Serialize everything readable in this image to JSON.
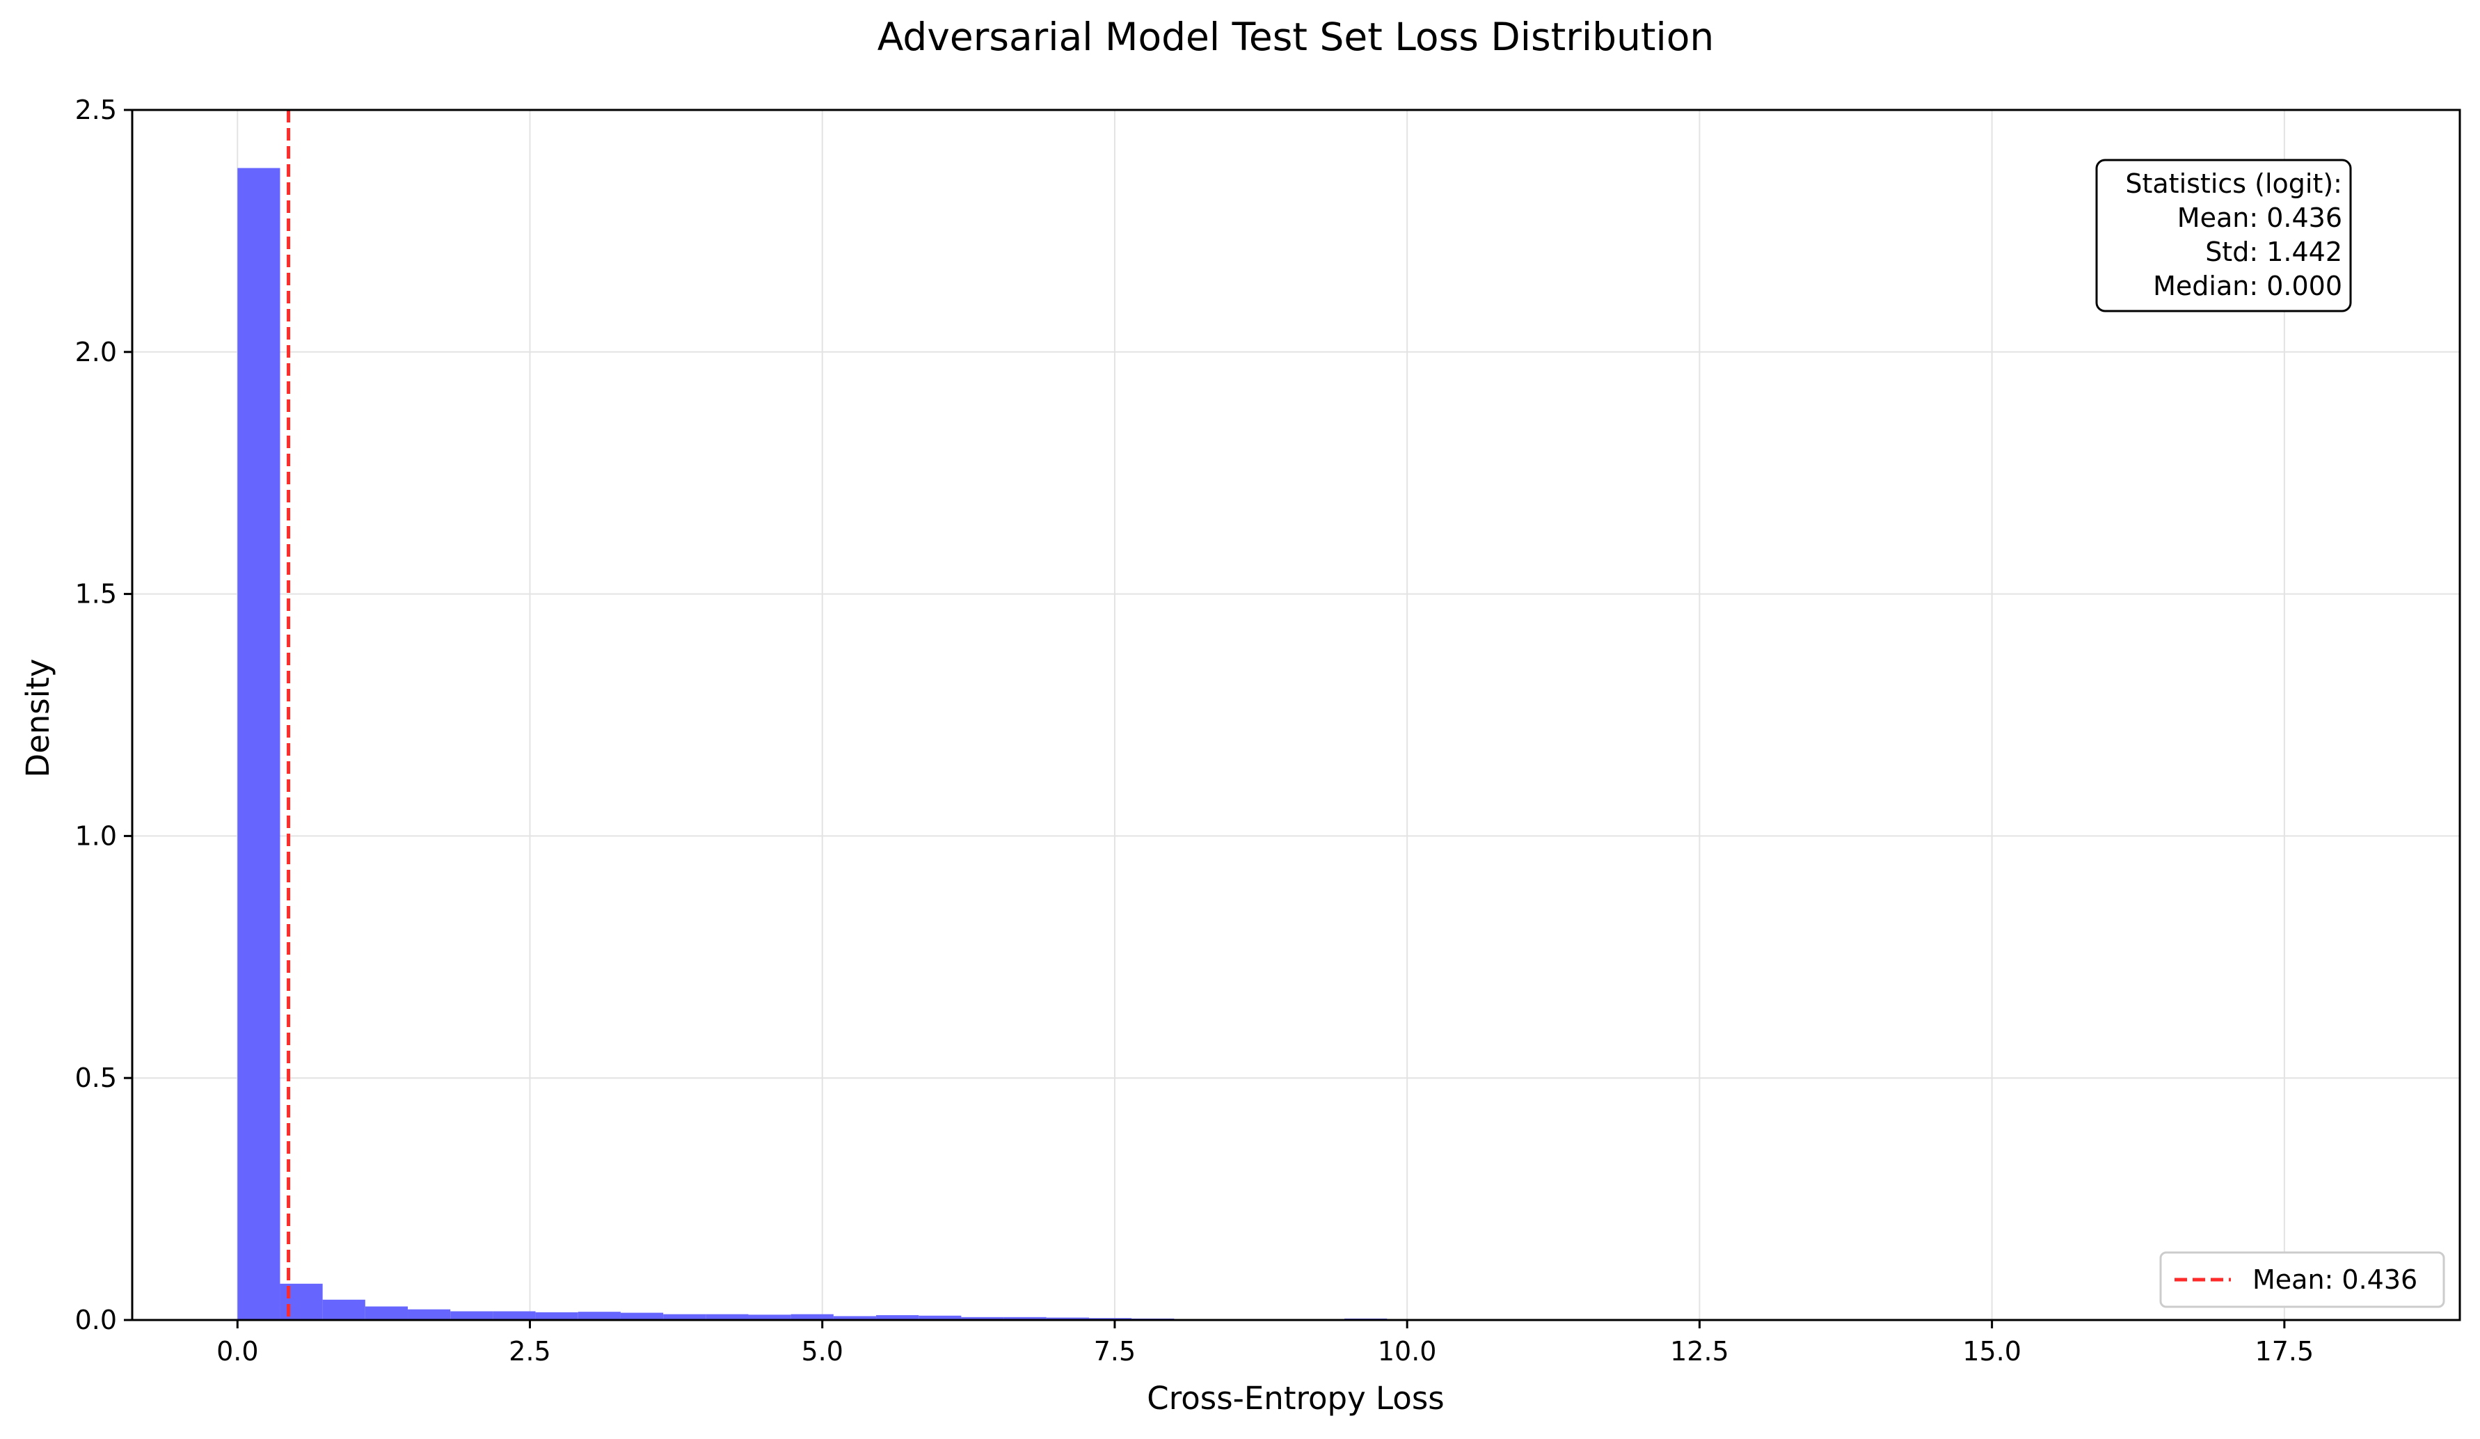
{
  "chart_data": {
    "type": "bar",
    "title": "Adversarial Model Test Set Loss Distribution",
    "xlabel": "Cross-Entropy Loss",
    "ylabel": "Density",
    "xlim": [
      -0.9,
      19.0
    ],
    "ylim": [
      0,
      2.5
    ],
    "x_ticks": [
      "0.0",
      "2.5",
      "5.0",
      "7.5",
      "10.0",
      "12.5",
      "15.0",
      "17.5"
    ],
    "y_ticks": [
      "0.0",
      "0.5",
      "1.0",
      "1.5",
      "2.0",
      "2.5"
    ],
    "grid": true,
    "bar_color": "#6666ff",
    "bins": {
      "start": 0.0,
      "width": 0.364,
      "values": [
        2.38,
        0.075,
        0.042,
        0.028,
        0.022,
        0.018,
        0.018,
        0.016,
        0.017,
        0.015,
        0.012,
        0.012,
        0.011,
        0.012,
        0.008,
        0.01,
        0.009,
        0.006,
        0.006,
        0.005,
        0.004,
        0.003,
        0.002,
        0.002,
        0.002,
        0.002,
        0.003,
        0.002,
        0.002,
        0.002,
        0.001,
        0.001,
        0.001,
        0.001,
        0.001,
        0.001,
        0.001,
        0.001,
        0.001,
        0.001,
        0.001,
        0.001,
        0.001,
        0.001,
        0.001,
        0.001,
        0.001,
        0.001,
        0.001,
        0.001
      ]
    },
    "mean_line": {
      "value": 0.436,
      "color": "#ff2a2a",
      "legend_label": "Mean: 0.436"
    },
    "legend_position": "lower-right",
    "stats_box": {
      "position": "upper-right",
      "lines": [
        "Statistics (logit):",
        "Mean: 0.436",
        "Std: 1.442",
        "Median: 0.000"
      ]
    }
  }
}
